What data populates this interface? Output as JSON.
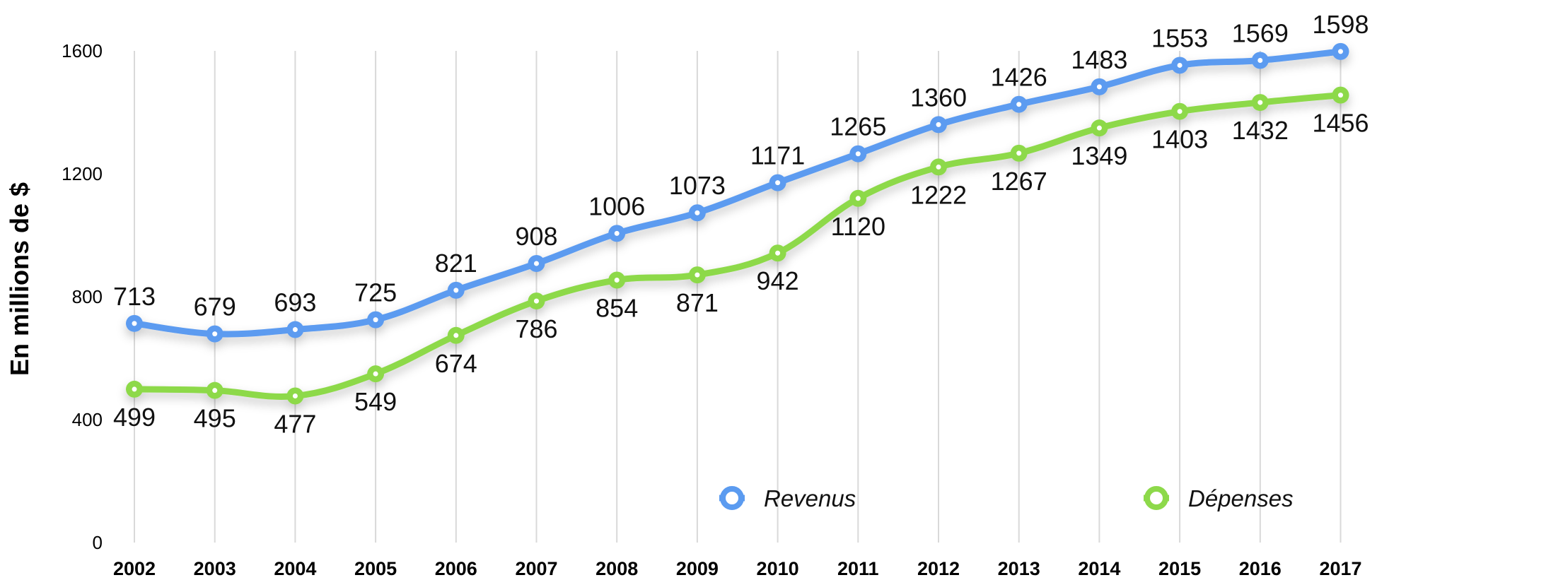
{
  "chart_data": {
    "type": "line",
    "title": "",
    "xlabel": "",
    "ylabel": "En millions de $",
    "ylim": [
      0,
      1600
    ],
    "yticks": [
      0,
      400,
      800,
      1200,
      1600
    ],
    "grid": "vertical",
    "legend_position": "bottom-right",
    "categories": [
      "2002",
      "2003",
      "2004",
      "2005",
      "2006",
      "2007",
      "2008",
      "2009",
      "2010",
      "2011",
      "2012",
      "2013",
      "2014",
      "2015",
      "2016",
      "2017"
    ],
    "series": [
      {
        "name": "Revenus",
        "color": "#5b9bf0",
        "values": [
          713,
          679,
          693,
          725,
          821,
          908,
          1006,
          1073,
          1171,
          1265,
          1360,
          1426,
          1483,
          1553,
          1569,
          1598
        ]
      },
      {
        "name": "Dépenses",
        "color": "#8dd94a",
        "values": [
          499,
          495,
          477,
          549,
          674,
          786,
          854,
          871,
          942,
          1120,
          1222,
          1267,
          1349,
          1403,
          1432,
          1456
        ]
      }
    ]
  }
}
